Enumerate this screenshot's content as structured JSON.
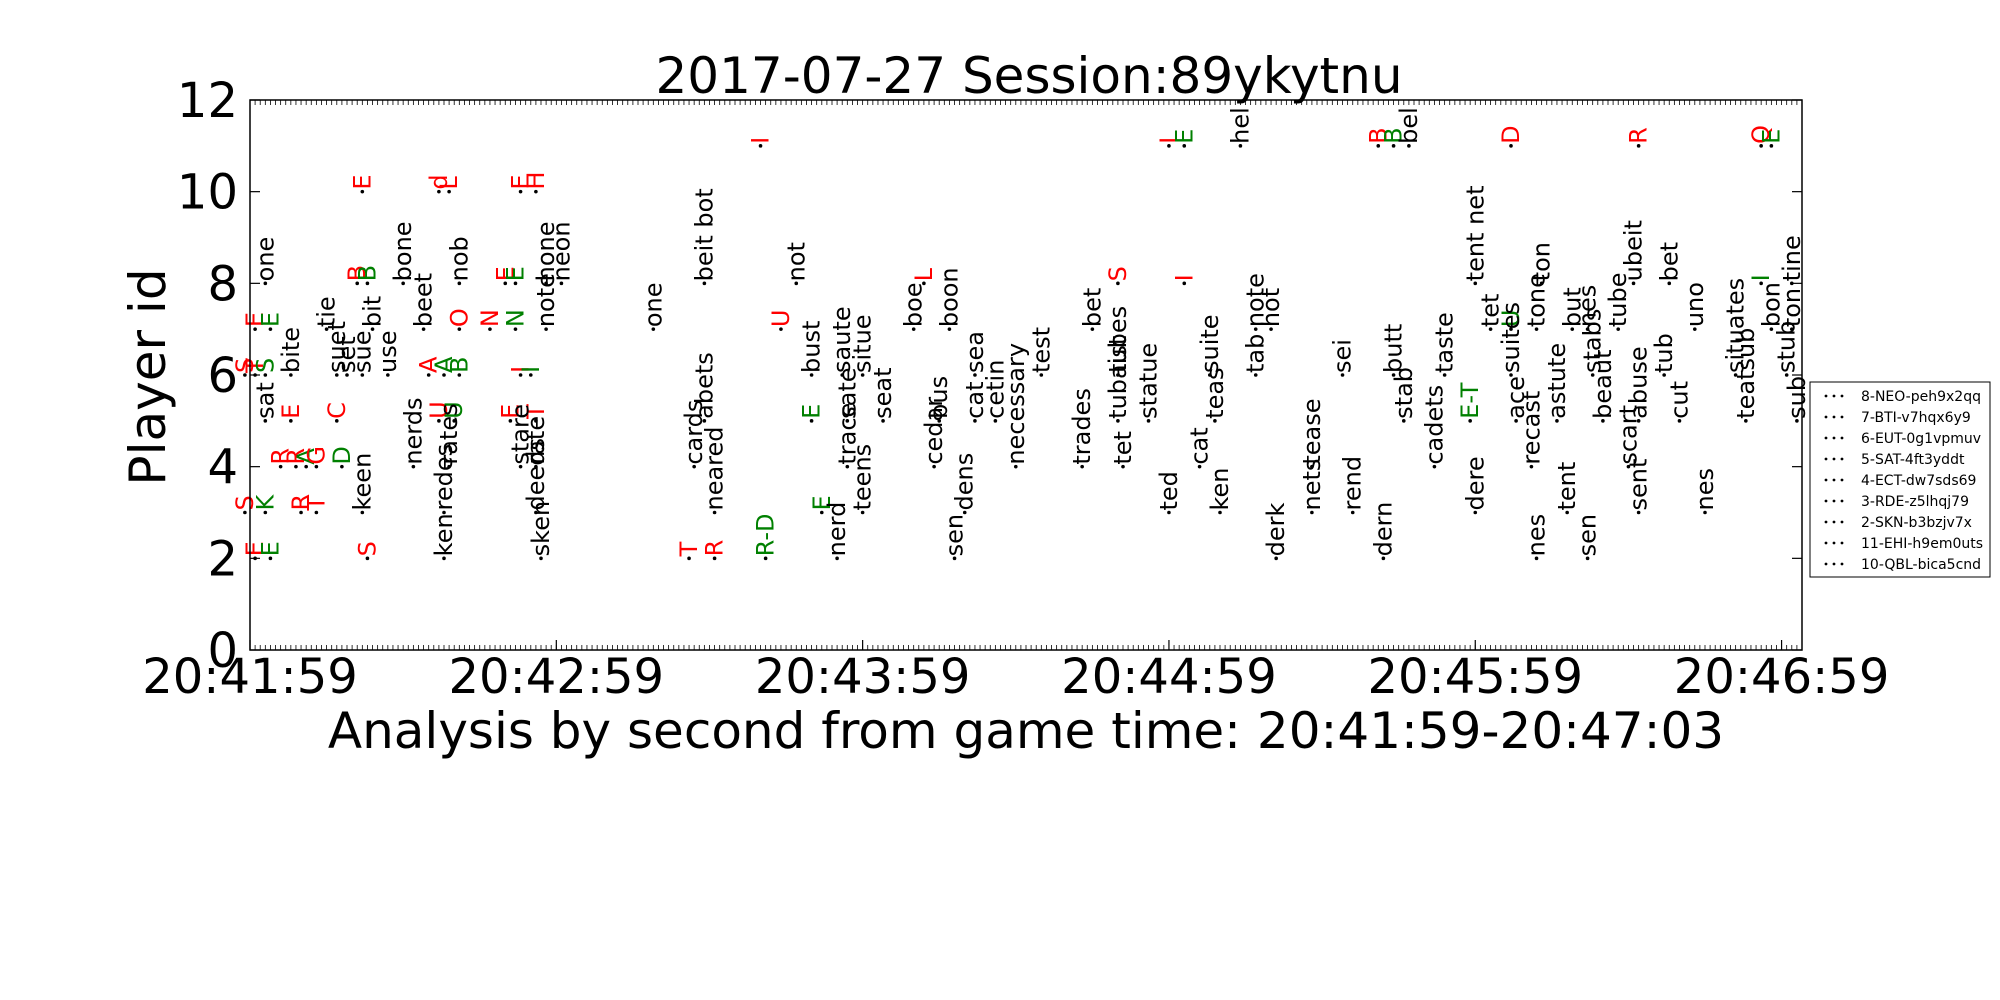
{
  "chart_data": {
    "type": "scatter",
    "title": "2017-07-27 Session:89ykytnu",
    "xlabel": "Analysis by second from game time: 20:41:59-20:47:03",
    "ylabel": "Player id",
    "x_tick_labels": [
      "20:41:59",
      "20:42:59",
      "20:43:59",
      "20:44:59",
      "20:45:59",
      "20:46:59"
    ],
    "x_tick_seconds": [
      0,
      60,
      120,
      180,
      240,
      300
    ],
    "xlim_seconds": [
      0,
      304
    ],
    "y_ticks": [
      "0",
      "2",
      "4",
      "6",
      "8",
      "10",
      "12"
    ],
    "ylim": [
      0,
      12
    ],
    "grid": false,
    "legend_position": "right",
    "colors": {
      "correct": "#008000",
      "wrong": "#ff0000",
      "word": "#000000",
      "dot": "#000000"
    },
    "legend": [
      "8-NEO-peh9x2qq",
      "7-BTI-v7hqx6y9",
      "6-EUT-0g1vpmuv",
      "5-SAT-4ft3yddt",
      "4-ECT-dw7sds69",
      "3-RDE-z5lhqj79",
      "2-SKN-b3bzjv7x",
      "11-EHI-h9em0uts",
      "10-QBL-bica5cnd"
    ],
    "series": [
      {
        "name": "10-QBL-bica5cnd",
        "y": 10,
        "points": [
          {
            "t": 22,
            "text": "E",
            "color": "wrong"
          },
          {
            "t": 37,
            "text": "d",
            "color": "wrong"
          },
          {
            "t": 39,
            "text": "L",
            "color": "wrong"
          },
          {
            "t": 53,
            "text": "E",
            "color": "wrong"
          },
          {
            "t": 56,
            "text": "H",
            "color": "wrong"
          }
        ]
      },
      {
        "name": "11-EHI-h9em0uts",
        "y": 11,
        "points": [
          {
            "t": 100,
            "text": "I",
            "color": "wrong"
          },
          {
            "t": 180,
            "text": "L",
            "color": "wrong"
          },
          {
            "t": 183,
            "text": "E",
            "color": "correct"
          },
          {
            "t": 194,
            "text": "hel",
            "color": "word"
          },
          {
            "t": 221,
            "text": "B",
            "color": "wrong"
          },
          {
            "t": 224,
            "text": "B",
            "color": "correct"
          },
          {
            "t": 227,
            "text": "bel",
            "color": "word"
          },
          {
            "t": 247,
            "text": "D",
            "color": "wrong"
          },
          {
            "t": 272,
            "text": "R",
            "color": "wrong"
          },
          {
            "t": 296,
            "text": "Q",
            "color": "wrong"
          },
          {
            "t": 298,
            "text": "E",
            "color": "correct"
          }
        ]
      },
      {
        "name": "8-NEO-peh9x2qq",
        "y": 8,
        "points": [
          {
            "t": 3,
            "text": "one",
            "color": "word"
          },
          {
            "t": 21,
            "text": "B",
            "color": "wrong"
          },
          {
            "t": 23,
            "text": "B",
            "color": "correct"
          },
          {
            "t": 30,
            "text": "bone",
            "color": "word"
          },
          {
            "t": 41,
            "text": "nob",
            "color": "word"
          },
          {
            "t": 50,
            "text": "E",
            "color": "wrong"
          },
          {
            "t": 52,
            "text": "E",
            "color": "correct"
          },
          {
            "t": 58,
            "text": "hone",
            "color": "word"
          },
          {
            "t": 61,
            "text": "neon",
            "color": "word"
          },
          {
            "t": 89,
            "text": "beit bot",
            "color": "word"
          },
          {
            "t": 107,
            "text": "not",
            "color": "word"
          },
          {
            "t": 132,
            "text": "L",
            "color": "wrong"
          },
          {
            "t": 170,
            "text": "S",
            "color": "wrong"
          },
          {
            "t": 183,
            "text": "I",
            "color": "wrong"
          },
          {
            "t": 240,
            "text": "tent net",
            "color": "word"
          },
          {
            "t": 253,
            "text": "ton",
            "color": "word"
          },
          {
            "t": 271,
            "text": "ubeit",
            "color": "word"
          },
          {
            "t": 278,
            "text": "bet",
            "color": "word"
          },
          {
            "t": 296,
            "text": "I",
            "color": "correct"
          },
          {
            "t": 302,
            "text": "tine",
            "color": "word"
          }
        ]
      },
      {
        "name": "7-BTI-v7hqx6y9",
        "y": 7,
        "points": [
          {
            "t": 1,
            "text": "E",
            "color": "wrong"
          },
          {
            "t": 4,
            "text": "E",
            "color": "correct"
          },
          {
            "t": 15,
            "text": "tie",
            "color": "word"
          },
          {
            "t": 24,
            "text": "bit",
            "color": "word"
          },
          {
            "t": 34,
            "text": "beet",
            "color": "word"
          },
          {
            "t": 41,
            "text": "O",
            "color": "wrong"
          },
          {
            "t": 47,
            "text": "N",
            "color": "wrong"
          },
          {
            "t": 52,
            "text": "N",
            "color": "correct"
          },
          {
            "t": 58,
            "text": "note",
            "color": "word"
          },
          {
            "t": 79,
            "text": "one",
            "color": "word"
          },
          {
            "t": 104,
            "text": "U",
            "color": "wrong"
          },
          {
            "t": 130,
            "text": "boe",
            "color": "word"
          },
          {
            "t": 137,
            "text": "boon",
            "color": "word"
          },
          {
            "t": 165,
            "text": "bet",
            "color": "word"
          },
          {
            "t": 197,
            "text": "note",
            "color": "word"
          },
          {
            "t": 200,
            "text": "hot",
            "color": "word"
          },
          {
            "t": 243,
            "text": "tet",
            "color": "word"
          },
          {
            "t": 247,
            "text": "U",
            "color": "correct"
          },
          {
            "t": 252,
            "text": "tone",
            "color": "word"
          },
          {
            "t": 259,
            "text": "but",
            "color": "word"
          },
          {
            "t": 262,
            "text": "nes",
            "color": "word"
          },
          {
            "t": 268,
            "text": "tube",
            "color": "word"
          },
          {
            "t": 283,
            "text": "uno",
            "color": "word"
          },
          {
            "t": 298,
            "text": "bon",
            "color": "word"
          },
          {
            "t": 302,
            "text": "ton",
            "color": "word"
          }
        ]
      },
      {
        "name": "6-EUT-0g1vpmuv",
        "y": 6,
        "points": [
          {
            "t": -1,
            "text": "S",
            "color": "wrong"
          },
          {
            "t": 1,
            "text": "T",
            "color": "wrong"
          },
          {
            "t": 3,
            "text": "S",
            "color": "correct"
          },
          {
            "t": 8,
            "text": "bite",
            "color": "word"
          },
          {
            "t": 17,
            "text": "suet",
            "color": "word"
          },
          {
            "t": 19,
            "text": "set",
            "color": "word"
          },
          {
            "t": 22,
            "text": "sue",
            "color": "word"
          },
          {
            "t": 27,
            "text": "use",
            "color": "word"
          },
          {
            "t": 35,
            "text": "A",
            "color": "wrong"
          },
          {
            "t": 38,
            "text": "A",
            "color": "correct"
          },
          {
            "t": 41,
            "text": "B",
            "color": "correct"
          },
          {
            "t": 53,
            "text": "I",
            "color": "wrong"
          },
          {
            "t": 55,
            "text": "I",
            "color": "correct"
          },
          {
            "t": 110,
            "text": "bust",
            "color": "word"
          },
          {
            "t": 116,
            "text": "saute",
            "color": "word"
          },
          {
            "t": 120,
            "text": "situe",
            "color": "word"
          },
          {
            "t": 142,
            "text": "sea",
            "color": "word"
          },
          {
            "t": 155,
            "text": "test",
            "color": "word"
          },
          {
            "t": 170,
            "text": "tubes",
            "color": "word"
          },
          {
            "t": 188,
            "text": "suite",
            "color": "word"
          },
          {
            "t": 197,
            "text": "tab",
            "color": "word"
          },
          {
            "t": 214,
            "text": "sei",
            "color": "word"
          },
          {
            "t": 224,
            "text": "butt",
            "color": "word"
          },
          {
            "t": 234,
            "text": "taste",
            "color": "word"
          },
          {
            "t": 247,
            "text": "suites",
            "color": "word"
          },
          {
            "t": 263,
            "text": "stabs",
            "color": "word"
          },
          {
            "t": 277,
            "text": "tub",
            "color": "word"
          },
          {
            "t": 291,
            "text": "situates",
            "color": "word"
          },
          {
            "t": 301,
            "text": "stub",
            "color": "word"
          }
        ]
      },
      {
        "name": "5-SAT-4ft3yddt",
        "y": 5,
        "points": [
          {
            "t": 3,
            "text": "sat",
            "color": "word"
          },
          {
            "t": 8,
            "text": "E",
            "color": "wrong"
          },
          {
            "t": 17,
            "text": "C",
            "color": "wrong"
          },
          {
            "t": 37,
            "text": "U",
            "color": "wrong"
          },
          {
            "t": 40,
            "text": "U",
            "color": "correct"
          },
          {
            "t": 51,
            "text": "E",
            "color": "wrong"
          },
          {
            "t": 56,
            "text": "T",
            "color": "wrong"
          },
          {
            "t": 89,
            "text": "abets",
            "color": "word"
          },
          {
            "t": 110,
            "text": "E",
            "color": "correct"
          },
          {
            "t": 117,
            "text": "sate",
            "color": "word"
          },
          {
            "t": 124,
            "text": "seat",
            "color": "word"
          },
          {
            "t": 135,
            "text": "bus",
            "color": "word"
          },
          {
            "t": 142,
            "text": "cat",
            "color": "word"
          },
          {
            "t": 146,
            "text": "cetin",
            "color": "word"
          },
          {
            "t": 170,
            "text": "tubaist",
            "color": "word"
          },
          {
            "t": 176,
            "text": "statue",
            "color": "word"
          },
          {
            "t": 189,
            "text": "teas",
            "color": "word"
          },
          {
            "t": 226,
            "text": "stab",
            "color": "word"
          },
          {
            "t": 239,
            "text": "E-T",
            "color": "correct"
          },
          {
            "t": 248,
            "text": "ace",
            "color": "word"
          },
          {
            "t": 256,
            "text": "astute",
            "color": "word"
          },
          {
            "t": 265,
            "text": "beaut",
            "color": "word"
          },
          {
            "t": 272,
            "text": "abuse",
            "color": "word"
          },
          {
            "t": 280,
            "text": "cut",
            "color": "word"
          },
          {
            "t": 293,
            "text": "teatsub",
            "color": "word"
          },
          {
            "t": 303,
            "text": "sub",
            "color": "word"
          }
        ]
      },
      {
        "name": "4-ECT-dw7sds69",
        "y": 4,
        "points": [
          {
            "t": 6,
            "text": "R",
            "color": "wrong"
          },
          {
            "t": 9,
            "text": "R",
            "color": "wrong"
          },
          {
            "t": 11,
            "text": "A",
            "color": "correct"
          },
          {
            "t": 13,
            "text": "G",
            "color": "wrong"
          },
          {
            "t": 18,
            "text": "D",
            "color": "correct"
          },
          {
            "t": 32,
            "text": "nerds",
            "color": "word"
          },
          {
            "t": 39,
            "text": "rates",
            "color": "word"
          },
          {
            "t": 53,
            "text": "stare",
            "color": "word"
          },
          {
            "t": 56,
            "text": "rate",
            "color": "word"
          },
          {
            "t": 87,
            "text": "cards",
            "color": "word"
          },
          {
            "t": 117,
            "text": "trace",
            "color": "word"
          },
          {
            "t": 134,
            "text": "cedar",
            "color": "word"
          },
          {
            "t": 150,
            "text": "necessary",
            "color": "word"
          },
          {
            "t": 163,
            "text": "trades",
            "color": "word"
          },
          {
            "t": 171,
            "text": "tet",
            "color": "word"
          },
          {
            "t": 186,
            "text": "cat",
            "color": "word"
          },
          {
            "t": 208,
            "text": "tease",
            "color": "word"
          },
          {
            "t": 232,
            "text": "cadets",
            "color": "word"
          },
          {
            "t": 251,
            "text": "recast",
            "color": "word"
          },
          {
            "t": 270,
            "text": "scart",
            "color": "word"
          }
        ]
      },
      {
        "name": "3-RDE-z5lhqj79",
        "y": 3,
        "points": [
          {
            "t": -1,
            "text": "S",
            "color": "wrong"
          },
          {
            "t": 3,
            "text": "K",
            "color": "correct"
          },
          {
            "t": 10,
            "text": "R",
            "color": "wrong"
          },
          {
            "t": 13,
            "text": "T",
            "color": "wrong"
          },
          {
            "t": 22,
            "text": "keen",
            "color": "word"
          },
          {
            "t": 38,
            "text": "redes",
            "color": "word"
          },
          {
            "t": 56,
            "text": "deeds",
            "color": "word"
          },
          {
            "t": 91,
            "text": "neared",
            "color": "word"
          },
          {
            "t": 112,
            "text": "E",
            "color": "correct"
          },
          {
            "t": 120,
            "text": "teens",
            "color": "word"
          },
          {
            "t": 140,
            "text": "dens",
            "color": "word"
          },
          {
            "t": 180,
            "text": "ted",
            "color": "word"
          },
          {
            "t": 190,
            "text": "ken",
            "color": "word"
          },
          {
            "t": 208,
            "text": "nets",
            "color": "word"
          },
          {
            "t": 216,
            "text": "rend",
            "color": "word"
          },
          {
            "t": 240,
            "text": "dere",
            "color": "word"
          },
          {
            "t": 258,
            "text": "tent",
            "color": "word"
          },
          {
            "t": 272,
            "text": "sent",
            "color": "word"
          },
          {
            "t": 285,
            "text": "nes",
            "color": "word"
          }
        ]
      },
      {
        "name": "2-SKN-b3bzjv7x",
        "y": 2,
        "points": [
          {
            "t": 1,
            "text": "E",
            "color": "wrong"
          },
          {
            "t": 4,
            "text": "E",
            "color": "correct"
          },
          {
            "t": 23,
            "text": "S",
            "color": "wrong"
          },
          {
            "t": 38,
            "text": "ken",
            "color": "word"
          },
          {
            "t": 57,
            "text": "sken",
            "color": "word"
          },
          {
            "t": 86,
            "text": "T",
            "color": "wrong"
          },
          {
            "t": 91,
            "text": "R",
            "color": "wrong"
          },
          {
            "t": 101,
            "text": "R-D",
            "color": "correct"
          },
          {
            "t": 115,
            "text": "nerd",
            "color": "word"
          },
          {
            "t": 138,
            "text": "sen",
            "color": "word"
          },
          {
            "t": 201,
            "text": "derk",
            "color": "word"
          },
          {
            "t": 222,
            "text": "dern",
            "color": "word"
          },
          {
            "t": 252,
            "text": "nes",
            "color": "word"
          },
          {
            "t": 262,
            "text": "sen",
            "color": "word"
          }
        ]
      }
    ]
  }
}
